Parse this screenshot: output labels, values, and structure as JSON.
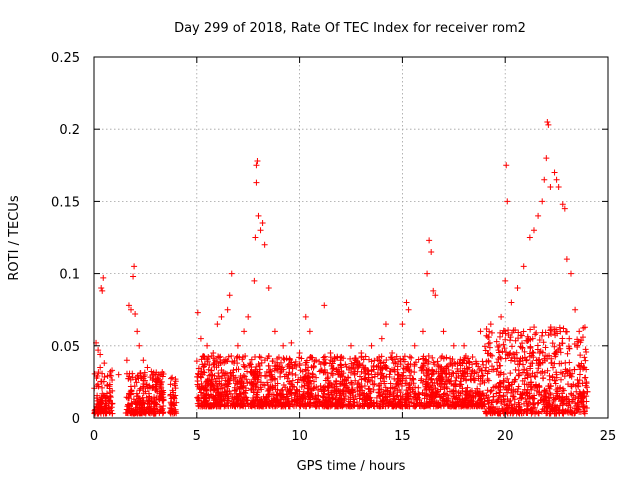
{
  "chart_data": {
    "type": "scatter",
    "title": "Day 299 of 2018, Rate Of TEC Index for receiver rom2",
    "xlabel": "GPS time / hours",
    "ylabel": "ROTI / TECUs",
    "xlim": [
      0,
      25
    ],
    "ylim": [
      0,
      0.25
    ],
    "xticks": [
      "0",
      "5",
      "10",
      "15",
      "20",
      "25"
    ],
    "yticks": [
      "0",
      "0.05",
      "0.1",
      "0.15",
      "0.2",
      "0.25"
    ],
    "grid": true,
    "marker": "+",
    "color": "#ff0000",
    "series": [
      {
        "points": [
          [
            0.1,
            0.052
          ],
          [
            0.2,
            0.047
          ],
          [
            0.3,
            0.044
          ],
          [
            0.35,
            0.09
          ],
          [
            0.4,
            0.088
          ],
          [
            0.45,
            0.097
          ],
          [
            0.3,
            0.035
          ],
          [
            0.5,
            0.038
          ],
          [
            0.8,
            0.032
          ],
          [
            1.2,
            0.03
          ],
          [
            1.6,
            0.04
          ],
          [
            1.7,
            0.078
          ],
          [
            1.8,
            0.075
          ],
          [
            1.9,
            0.098
          ],
          [
            1.95,
            0.105
          ],
          [
            2.0,
            0.072
          ],
          [
            2.1,
            0.06
          ],
          [
            2.2,
            0.05
          ],
          [
            2.4,
            0.04
          ],
          [
            2.6,
            0.035
          ],
          [
            3.0,
            0.03
          ],
          [
            3.3,
            0.025
          ],
          [
            3.8,
            0.028
          ],
          [
            5.05,
            0.073
          ],
          [
            5.2,
            0.055
          ],
          [
            5.5,
            0.05
          ],
          [
            5.8,
            0.045
          ],
          [
            6.0,
            0.065
          ],
          [
            6.2,
            0.07
          ],
          [
            6.5,
            0.075
          ],
          [
            6.6,
            0.085
          ],
          [
            6.7,
            0.1
          ],
          [
            7.0,
            0.05
          ],
          [
            7.3,
            0.06
          ],
          [
            7.5,
            0.07
          ],
          [
            7.8,
            0.095
          ],
          [
            7.85,
            0.125
          ],
          [
            7.9,
            0.163
          ],
          [
            7.9,
            0.175
          ],
          [
            7.95,
            0.178
          ],
          [
            8.0,
            0.14
          ],
          [
            8.1,
            0.13
          ],
          [
            8.2,
            0.135
          ],
          [
            8.3,
            0.12
          ],
          [
            8.5,
            0.09
          ],
          [
            8.8,
            0.06
          ],
          [
            9.2,
            0.05
          ],
          [
            9.6,
            0.052
          ],
          [
            10.0,
            0.045
          ],
          [
            10.3,
            0.07
          ],
          [
            10.5,
            0.06
          ],
          [
            10.8,
            0.04
          ],
          [
            11.2,
            0.078
          ],
          [
            11.5,
            0.045
          ],
          [
            12.0,
            0.04
          ],
          [
            12.5,
            0.05
          ],
          [
            13.0,
            0.045
          ],
          [
            13.5,
            0.05
          ],
          [
            14.0,
            0.055
          ],
          [
            14.2,
            0.065
          ],
          [
            14.5,
            0.045
          ],
          [
            15.0,
            0.065
          ],
          [
            15.2,
            0.08
          ],
          [
            15.3,
            0.075
          ],
          [
            15.6,
            0.05
          ],
          [
            16.0,
            0.06
          ],
          [
            16.2,
            0.1
          ],
          [
            16.3,
            0.123
          ],
          [
            16.4,
            0.115
          ],
          [
            16.5,
            0.088
          ],
          [
            16.6,
            0.085
          ],
          [
            17.0,
            0.06
          ],
          [
            17.5,
            0.05
          ],
          [
            18.0,
            0.05
          ],
          [
            18.8,
            0.06
          ],
          [
            19.3,
            0.065
          ],
          [
            19.8,
            0.07
          ],
          [
            20.0,
            0.095
          ],
          [
            20.05,
            0.175
          ],
          [
            20.1,
            0.15
          ],
          [
            20.3,
            0.08
          ],
          [
            20.6,
            0.09
          ],
          [
            20.9,
            0.105
          ],
          [
            21.2,
            0.125
          ],
          [
            21.4,
            0.13
          ],
          [
            21.6,
            0.14
          ],
          [
            21.8,
            0.15
          ],
          [
            21.9,
            0.165
          ],
          [
            22.0,
            0.18
          ],
          [
            22.05,
            0.205
          ],
          [
            22.1,
            0.203
          ],
          [
            22.2,
            0.16
          ],
          [
            22.4,
            0.17
          ],
          [
            22.5,
            0.165
          ],
          [
            22.6,
            0.16
          ],
          [
            22.8,
            0.148
          ],
          [
            22.9,
            0.145
          ],
          [
            23.0,
            0.11
          ],
          [
            23.2,
            0.1
          ],
          [
            23.4,
            0.075
          ],
          [
            23.6,
            0.06
          ]
        ]
      }
    ]
  }
}
